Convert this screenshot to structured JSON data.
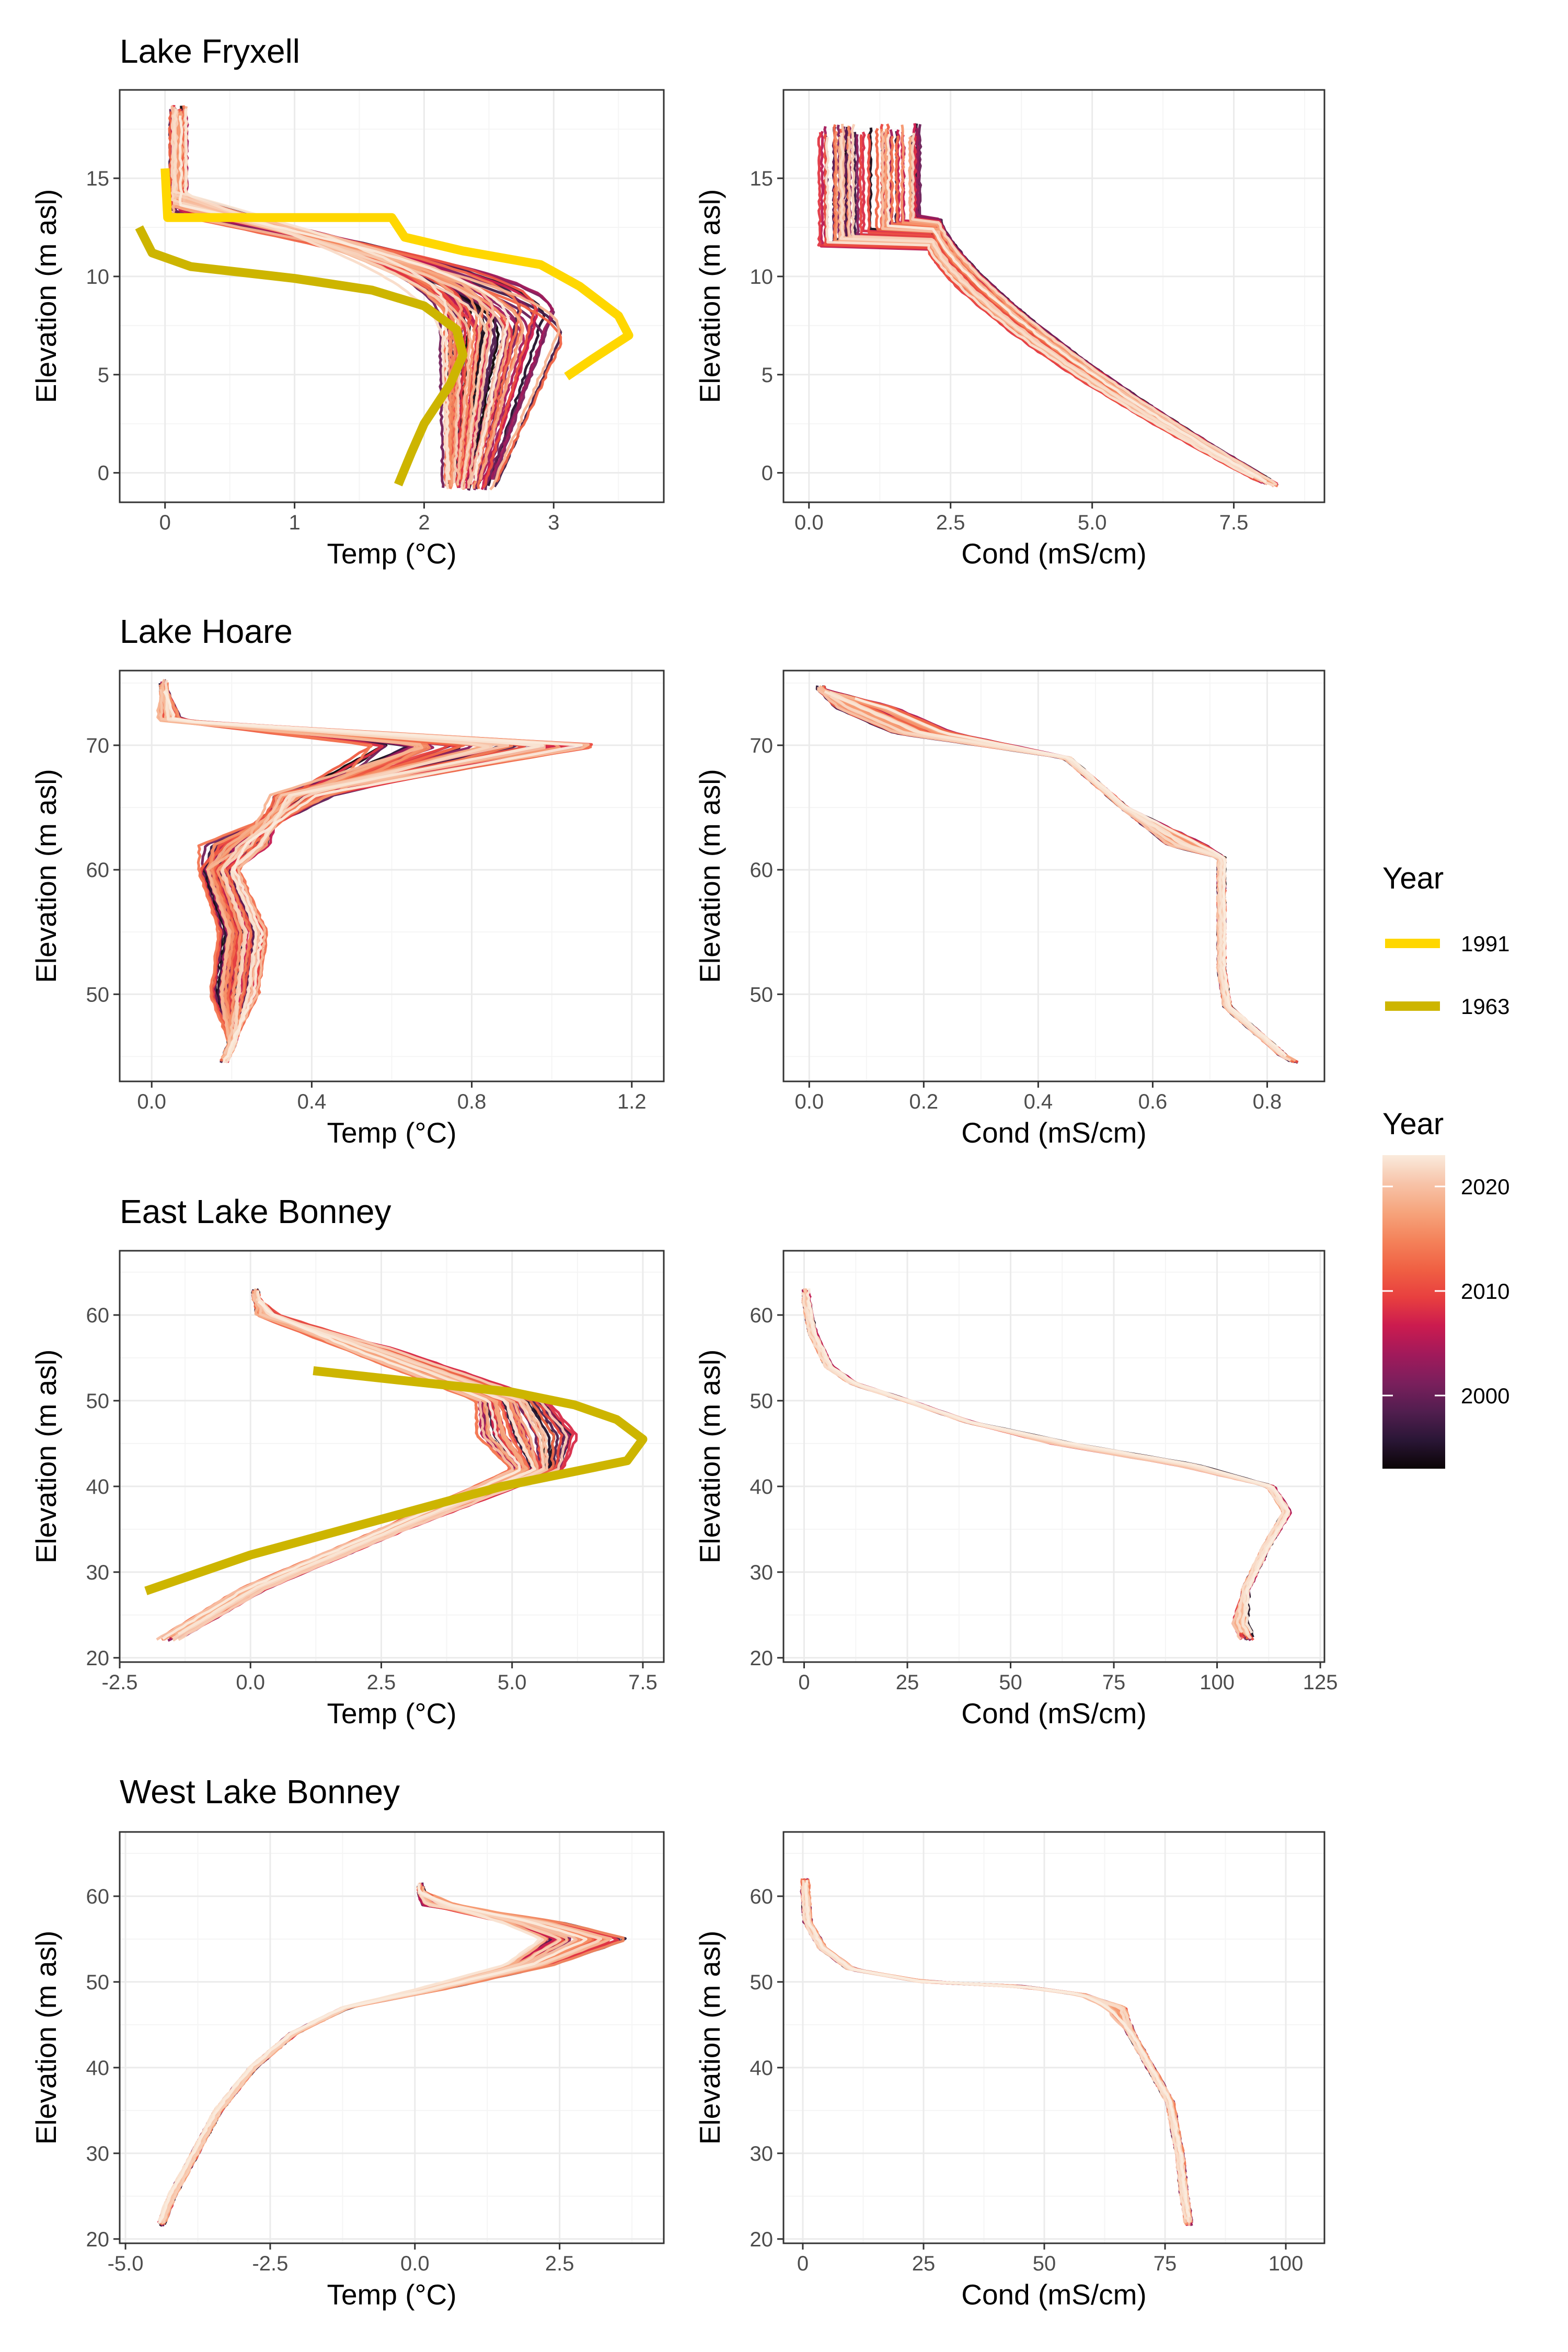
{
  "colors": {
    "year_1991": "#FFD700",
    "year_1963": "#CDB500",
    "palette": [
      "#0B0405",
      "#2A1636",
      "#511E4F",
      "#7A1F5C",
      "#A11A5B",
      "#CB1B4F",
      "#E83F3F",
      "#F06043",
      "#F4825A",
      "#F6A47C",
      "#F7C3A8",
      "#FAEBDD"
    ],
    "grid_major": "#EBEBEB",
    "grid_minor": "#F5F5F5",
    "panel_border": "#333333"
  },
  "legend_lines": {
    "title": "Year",
    "entries": [
      {
        "label": "1991",
        "color": "#FFD700"
      },
      {
        "label": "1963",
        "color": "#CDB500"
      }
    ]
  },
  "legend_gradient": {
    "title": "Year",
    "range": [
      1993,
      2023
    ],
    "breaks": [
      {
        "label": "2020",
        "value": 2020
      },
      {
        "label": "2010",
        "value": 2010
      },
      {
        "label": "2000",
        "value": 2000
      }
    ]
  },
  "chart_data": [
    {
      "type": "line",
      "lake": "Lake Fryxell",
      "title": "Lake Fryxell",
      "variable": "temp",
      "xlabel": "Temp (°C)",
      "ylabel": "Elevation (m asl)",
      "xlim": [
        -0.35,
        3.85
      ],
      "ylim": [
        -1.5,
        19.5
      ],
      "xticks": [
        {
          "v": 0,
          "l": "0"
        },
        {
          "v": 1,
          "l": "1"
        },
        {
          "v": 2,
          "l": "2"
        },
        {
          "v": 3,
          "l": "3"
        }
      ],
      "yticks": [
        {
          "v": 0,
          "l": "0"
        },
        {
          "v": 5,
          "l": "5"
        },
        {
          "v": 10,
          "l": "10"
        },
        {
          "v": 15,
          "l": "15"
        }
      ],
      "grid": true,
      "profile": {
        "kind": "fryxell_temp",
        "ytop": 18.2,
        "ybot": -0.9,
        "xsurf": 0.05
      },
      "highlight": [
        {
          "year": "1991",
          "points": [
            [
              0.0,
              15.5
            ],
            [
              0.02,
              13.0
            ],
            [
              1.75,
              13.0
            ],
            [
              1.85,
              12.0
            ],
            [
              2.3,
              11.3
            ],
            [
              2.9,
              10.6
            ],
            [
              3.2,
              9.5
            ],
            [
              3.5,
              8.0
            ],
            [
              3.58,
              7.0
            ],
            [
              3.3,
              5.8
            ],
            [
              3.1,
              4.9
            ]
          ]
        },
        {
          "year": "1963",
          "points": [
            [
              -0.2,
              12.5
            ],
            [
              -0.1,
              11.2
            ],
            [
              0.2,
              10.5
            ],
            [
              1.0,
              9.9
            ],
            [
              1.6,
              9.3
            ],
            [
              2.0,
              8.5
            ],
            [
              2.25,
              7.3
            ],
            [
              2.3,
              6.0
            ],
            [
              2.2,
              4.5
            ],
            [
              2.0,
              2.5
            ],
            [
              1.9,
              1.0
            ],
            [
              1.8,
              -0.6
            ]
          ]
        }
      ]
    },
    {
      "type": "line",
      "lake": "Lake Fryxell",
      "variable": "cond",
      "xlabel": "Cond (mS/cm)",
      "ylabel": "Elevation (m asl)",
      "xlim": [
        -0.45,
        9.1
      ],
      "ylim": [
        -1.5,
        19.5
      ],
      "xticks": [
        {
          "v": 0,
          "l": "0.0"
        },
        {
          "v": 2.5,
          "l": "2.5"
        },
        {
          "v": 5,
          "l": "5.0"
        },
        {
          "v": 7.5,
          "l": "7.5"
        }
      ],
      "yticks": [
        {
          "v": 0,
          "l": "0"
        },
        {
          "v": 5,
          "l": "5"
        },
        {
          "v": 10,
          "l": "10"
        },
        {
          "v": 15,
          "l": "15"
        }
      ],
      "grid": true,
      "profile": {
        "kind": "fryxell_cond",
        "ytop": 17.3,
        "ybot": -0.7,
        "xsurf": 0.2
      }
    },
    {
      "type": "line",
      "lake": "Lake Hoare",
      "title": "Lake Hoare",
      "variable": "temp",
      "xlabel": "Temp (°C)",
      "ylabel": "Elevation (m asl)",
      "xlim": [
        -0.08,
        1.28
      ],
      "ylim": [
        43,
        76
      ],
      "xticks": [
        {
          "v": 0,
          "l": "0.0"
        },
        {
          "v": 0.4,
          "l": "0.4"
        },
        {
          "v": 0.8,
          "l": "0.8"
        },
        {
          "v": 1.2,
          "l": "1.2"
        }
      ],
      "yticks": [
        {
          "v": 50,
          "l": "50"
        },
        {
          "v": 60,
          "l": "60"
        },
        {
          "v": 70,
          "l": "70"
        }
      ],
      "grid": true,
      "profile": {
        "kind": "hoare_temp",
        "ytop": 74.5,
        "ybot": 44.5,
        "xsurf": 0.03
      }
    },
    {
      "type": "line",
      "lake": "Lake Hoare",
      "variable": "cond",
      "xlabel": "Cond (mS/cm)",
      "ylabel": "Elevation (m asl)",
      "xlim": [
        -0.045,
        0.9
      ],
      "ylim": [
        43,
        76
      ],
      "xticks": [
        {
          "v": 0,
          "l": "0.0"
        },
        {
          "v": 0.2,
          "l": "0.2"
        },
        {
          "v": 0.4,
          "l": "0.4"
        },
        {
          "v": 0.6,
          "l": "0.6"
        },
        {
          "v": 0.8,
          "l": "0.8"
        }
      ],
      "yticks": [
        {
          "v": 50,
          "l": "50"
        },
        {
          "v": 60,
          "l": "60"
        },
        {
          "v": 70,
          "l": "70"
        }
      ],
      "grid": true,
      "profile": {
        "kind": "hoare_cond",
        "ytop": 74.0,
        "ybot": 44.5,
        "xsurf": 0.02
      }
    },
    {
      "type": "line",
      "lake": "East Lake Bonney",
      "title": "East Lake Bonney",
      "variable": "temp",
      "xlabel": "Temp (°C)",
      "ylabel": "Elevation (m asl)",
      "xlim": [
        -2.5,
        7.9
      ],
      "ylim": [
        19.5,
        67.5
      ],
      "xticks": [
        {
          "v": -2.5,
          "l": "-2.5"
        },
        {
          "v": 0,
          "l": "0.0"
        },
        {
          "v": 2.5,
          "l": "2.5"
        },
        {
          "v": 5,
          "l": "5.0"
        },
        {
          "v": 7.5,
          "l": "7.5"
        }
      ],
      "yticks": [
        {
          "v": 20,
          "l": "20"
        },
        {
          "v": 30,
          "l": "30"
        },
        {
          "v": 40,
          "l": "40"
        },
        {
          "v": 50,
          "l": "50"
        },
        {
          "v": 60,
          "l": "60"
        }
      ],
      "grid": true,
      "profile": {
        "kind": "elb_temp",
        "ytop": 62.0,
        "ybot": 22.0,
        "xsurf": 0.2
      },
      "highlight": [
        {
          "year": "1963",
          "points": [
            [
              1.2,
              53.5
            ],
            [
              3.0,
              52.3
            ],
            [
              5.0,
              51.0
            ],
            [
              6.2,
              49.5
            ],
            [
              7.0,
              47.8
            ],
            [
              7.5,
              45.5
            ],
            [
              7.2,
              43.0
            ],
            [
              6.0,
              41.5
            ],
            [
              4.8,
              40.0
            ],
            [
              3.0,
              37.0
            ],
            [
              1.5,
              34.5
            ],
            [
              0.0,
              32.0
            ],
            [
              -2.0,
              27.8
            ]
          ]
        }
      ]
    },
    {
      "type": "line",
      "lake": "East Lake Bonney",
      "variable": "cond",
      "xlabel": "Cond (mS/cm)",
      "ylabel": "Elevation (m asl)",
      "xlim": [
        -5,
        126
      ],
      "ylim": [
        19.5,
        67.5
      ],
      "xticks": [
        {
          "v": 0,
          "l": "0"
        },
        {
          "v": 25,
          "l": "25"
        },
        {
          "v": 50,
          "l": "50"
        },
        {
          "v": 75,
          "l": "75"
        },
        {
          "v": 100,
          "l": "100"
        },
        {
          "v": 125,
          "l": "125"
        }
      ],
      "yticks": [
        {
          "v": 20,
          "l": "20"
        },
        {
          "v": 30,
          "l": "30"
        },
        {
          "v": 40,
          "l": "40"
        },
        {
          "v": 50,
          "l": "50"
        },
        {
          "v": 60,
          "l": "60"
        }
      ],
      "grid": true,
      "profile": {
        "kind": "elb_cond",
        "ytop": 62.0,
        "ybot": 22.0,
        "xsurf": 0.5
      }
    },
    {
      "type": "line",
      "lake": "West Lake Bonney",
      "title": "West Lake Bonney",
      "variable": "temp",
      "xlabel": "Temp (°C)",
      "ylabel": "Elevation (m asl)",
      "xlim": [
        -5.1,
        4.3
      ],
      "ylim": [
        19.5,
        67.5
      ],
      "xticks": [
        {
          "v": -5,
          "l": "-5.0"
        },
        {
          "v": -2.5,
          "l": "-2.5"
        },
        {
          "v": 0,
          "l": "0.0"
        },
        {
          "v": 2.5,
          "l": "2.5"
        }
      ],
      "yticks": [
        {
          "v": 20,
          "l": "20"
        },
        {
          "v": 30,
          "l": "30"
        },
        {
          "v": 40,
          "l": "40"
        },
        {
          "v": 50,
          "l": "50"
        },
        {
          "v": 60,
          "l": "60"
        }
      ],
      "grid": true,
      "profile": {
        "kind": "wlb_temp",
        "ytop": 60.5,
        "ybot": 21.5,
        "xsurf": 0.1
      }
    },
    {
      "type": "line",
      "lake": "West Lake Bonney",
      "variable": "cond",
      "xlabel": "Cond (mS/cm)",
      "ylabel": "Elevation (m asl)",
      "xlim": [
        -4,
        108
      ],
      "ylim": [
        19.5,
        67.5
      ],
      "xticks": [
        {
          "v": 0,
          "l": "0"
        },
        {
          "v": 25,
          "l": "25"
        },
        {
          "v": 50,
          "l": "50"
        },
        {
          "v": 75,
          "l": "75"
        },
        {
          "v": 100,
          "l": "100"
        }
      ],
      "yticks": [
        {
          "v": 20,
          "l": "20"
        },
        {
          "v": 30,
          "l": "30"
        },
        {
          "v": 40,
          "l": "40"
        },
        {
          "v": 50,
          "l": "50"
        },
        {
          "v": 60,
          "l": "60"
        }
      ],
      "grid": true,
      "profile": {
        "kind": "wlb_cond",
        "ytop": 61.0,
        "ybot": 21.5,
        "xsurf": 0.5
      }
    }
  ]
}
